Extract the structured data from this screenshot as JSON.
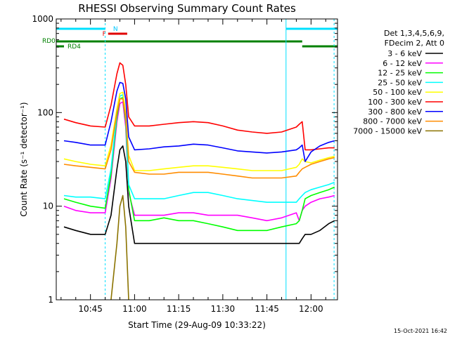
{
  "chart_data": {
    "type": "line",
    "title": "RHESSI Observing Summary Count Rates",
    "xlabel": "Start Time (29-Aug-09 10:33:22)",
    "ylabel": "Count Rate (s⁻¹ detector⁻¹)",
    "y_scale": "log",
    "ylim": [
      1,
      1000
    ],
    "xlim": [
      "10:33:22",
      "12:09:00"
    ],
    "x_tick_labels": [
      "10:45",
      "11:00",
      "11:15",
      "11:30",
      "11:45",
      "12:00"
    ],
    "y_tick_labels": [
      "1",
      "10",
      "100",
      "1000"
    ],
    "timestamp": "15-Oct-2021 16:42",
    "legend_header": [
      "Det 1,3,4,5,6,9,",
      "FDecim 2, Att 0"
    ],
    "legend_position": "right",
    "vertical_lines": {
      "solid": [
        "10:33:22",
        "11:51:30"
      ],
      "dashed": [
        "10:50:00",
        "12:07:50"
      ],
      "color": "#00e0ff"
    },
    "status_bars": [
      {
        "label": "N",
        "color": "#00e0ff",
        "segments": [
          [
            "10:33:22",
            "10:50:00"
          ],
          [
            "11:51:30",
            "12:09:00"
          ]
        ]
      },
      {
        "label": "F",
        "color": "#e00000",
        "segments": [
          [
            "10:51:00",
            "10:57:30"
          ]
        ]
      },
      {
        "label": "RD0",
        "color": "#008000",
        "segments": [
          [
            "10:33:22",
            "11:57:00"
          ],
          [
            "11:57:00",
            "12:09:00"
          ]
        ]
      },
      {
        "label": "RD4",
        "color": "#008000",
        "segments": [
          [
            "10:33:22",
            "10:36:00"
          ]
        ]
      }
    ],
    "x": [
      "10:36",
      "10:40",
      "10:45",
      "10:50",
      "10:52",
      "10:54",
      "10:55",
      "10:56",
      "10:57",
      "10:58",
      "11:00",
      "11:05",
      "11:10",
      "11:15",
      "11:20",
      "11:25",
      "11:30",
      "11:35",
      "11:40",
      "11:45",
      "11:50",
      "11:55",
      "11:56",
      "11:57",
      "11:58",
      "12:00",
      "12:03",
      "12:06",
      "12:08"
    ],
    "series": [
      {
        "name": "3 - 6 keV",
        "color": "#000000",
        "values": [
          6,
          5.5,
          5,
          5,
          8,
          25,
          40,
          44,
          30,
          10,
          4,
          4,
          4,
          4,
          4,
          4,
          4,
          4,
          4,
          4,
          4,
          4,
          4,
          4.5,
          5,
          5,
          5.5,
          6.5,
          7
        ]
      },
      {
        "name": "6 - 12 keV",
        "color": "#ff00ff",
        "values": [
          10,
          9,
          8.5,
          8.5,
          20,
          80,
          125,
          130,
          70,
          14,
          8,
          8,
          8,
          8.5,
          8.5,
          8,
          8,
          8,
          7.5,
          7,
          7.5,
          8.5,
          7,
          9,
          10,
          11,
          12,
          12.5,
          13
        ]
      },
      {
        "name": "12 - 25 keV",
        "color": "#00ff00",
        "values": [
          12,
          11,
          10,
          9.5,
          22,
          90,
          140,
          145,
          80,
          15,
          7,
          7,
          7.5,
          7,
          7,
          6.5,
          6,
          5.5,
          5.5,
          5.5,
          6,
          6.5,
          7,
          9,
          12,
          13,
          14,
          15,
          16
        ]
      },
      {
        "name": "25 - 50 keV",
        "color": "#00ffff",
        "values": [
          13,
          12.5,
          12.5,
          12,
          25,
          100,
          150,
          155,
          90,
          17,
          12,
          12,
          12,
          13,
          14,
          14,
          13,
          12,
          11.5,
          11,
          11,
          11,
          12,
          13,
          14,
          15,
          16,
          17,
          18
        ]
      },
      {
        "name": "50 - 100 keV",
        "color": "#ffff00",
        "values": [
          32,
          30,
          28,
          27,
          45,
          110,
          160,
          165,
          100,
          35,
          24,
          24,
          25,
          26,
          27,
          27,
          26,
          25,
          24,
          24,
          24,
          26,
          28,
          32,
          30,
          29,
          31,
          33,
          34
        ]
      },
      {
        "name": "100 - 300 keV",
        "color": "#ff0000",
        "values": [
          85,
          78,
          72,
          70,
          120,
          260,
          340,
          320,
          200,
          90,
          72,
          72,
          75,
          78,
          80,
          78,
          72,
          65,
          62,
          60,
          62,
          70,
          75,
          80,
          40,
          40,
          41,
          42,
          42
        ]
      },
      {
        "name": "300 - 800 keV",
        "color": "#0000ff",
        "values": [
          50,
          48,
          45,
          45,
          80,
          170,
          210,
          205,
          140,
          55,
          40,
          41,
          43,
          44,
          46,
          45,
          42,
          39,
          38,
          37,
          38,
          40,
          42,
          45,
          30,
          38,
          44,
          48,
          50
        ]
      },
      {
        "name": "800 - 7000 keV",
        "color": "#ff8c00",
        "values": [
          28,
          27,
          26,
          25,
          40,
          100,
          140,
          140,
          90,
          30,
          23,
          22,
          22,
          23,
          23,
          23,
          22,
          21,
          20,
          20,
          20,
          21,
          23,
          25,
          26,
          28,
          30,
          32,
          33
        ]
      },
      {
        "name": "7000 - 15000 keV",
        "color": "#8b7300",
        "values": [
          null,
          null,
          null,
          null,
          1,
          4,
          10,
          13,
          6,
          1,
          null,
          null,
          null,
          null,
          null,
          null,
          null,
          null,
          null,
          null,
          null,
          null,
          null,
          null,
          null,
          null,
          null,
          null,
          null
        ]
      }
    ]
  }
}
